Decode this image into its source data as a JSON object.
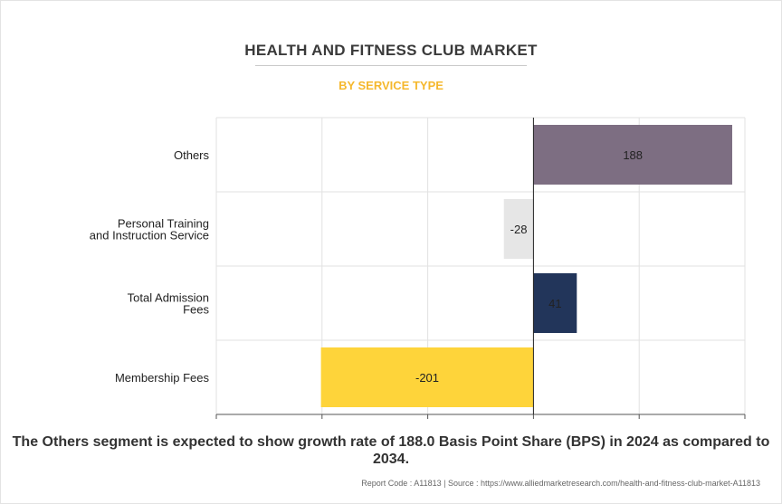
{
  "title": "HEALTH AND FITNESS CLUB MARKET",
  "subtitle": "BY SERVICE TYPE",
  "caption": "The Others segment is expected to show growth rate of 188.0 Basis Point Share (BPS) in 2024 as compared to 2034.",
  "footer": {
    "report_code": "Report Code : A11813",
    "separator": "|",
    "source": "Source : https://www.alliedmarketresearch.com/health-and-fitness-club-market-A11813"
  },
  "colors": {
    "title": "#3a3a3a",
    "subtitle": "#f5b82e",
    "others": "#7d6e82",
    "personal_training": "#e6e6e6",
    "admission": "#22355a",
    "membership": "#fed43a"
  },
  "chart_data": {
    "type": "bar",
    "orientation": "horizontal",
    "title": "HEALTH AND FITNESS CLUB MARKET",
    "subtitle": "BY SERVICE TYPE",
    "categories": [
      [
        "Others"
      ],
      [
        "Personal Training",
        "and Instruction Service"
      ],
      [
        "Total Admission",
        "Fees"
      ],
      [
        "Membership Fees"
      ]
    ],
    "values": [
      188,
      -28,
      41,
      -201
    ],
    "value_labels": [
      "188",
      "-28",
      "41",
      "-201"
    ],
    "colors": [
      "#7d6e82",
      "#e6e6e6",
      "#22355a",
      "#fed43a"
    ],
    "xlim": [
      -300,
      200
    ],
    "grid": true,
    "legend": "none"
  }
}
